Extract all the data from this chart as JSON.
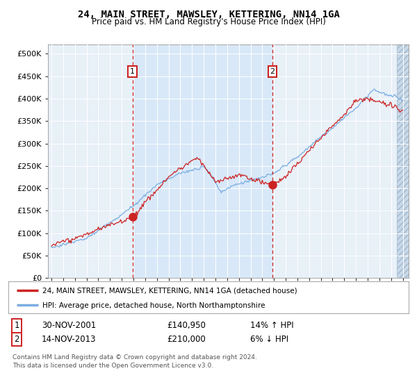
{
  "title": "24, MAIN STREET, MAWSLEY, KETTERING, NN14 1GA",
  "subtitle": "Price paid vs. HM Land Registry's House Price Index (HPI)",
  "legend_line1": "24, MAIN STREET, MAWSLEY, KETTERING, NN14 1GA (detached house)",
  "legend_line2": "HPI: Average price, detached house, North Northamptonshire",
  "footnote1": "Contains HM Land Registry data © Crown copyright and database right 2024.",
  "footnote2": "This data is licensed under the Open Government Licence v3.0.",
  "transaction1_date": "30-NOV-2001",
  "transaction1_price": "£140,950",
  "transaction1_hpi": "14% ↑ HPI",
  "transaction2_date": "14-NOV-2013",
  "transaction2_price": "£210,000",
  "transaction2_hpi": "6% ↓ HPI",
  "red_line_color": "#cc2222",
  "blue_line_color": "#7aade0",
  "shade_color": "#d8e8f8",
  "hatch_color": "#b8cce0",
  "plot_bg_color": "#e8f0f8",
  "ylim_min": 0,
  "ylim_max": 520000,
  "yticks": [
    0,
    50000,
    100000,
    150000,
    200000,
    250000,
    300000,
    350000,
    400000,
    450000,
    500000
  ],
  "transaction1_x": 2001.92,
  "transaction2_x": 2013.87
}
